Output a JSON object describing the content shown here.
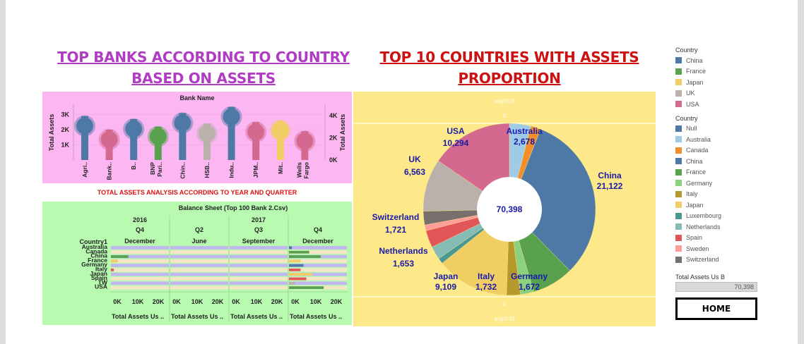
{
  "titles": {
    "left_line1": "TOP BANKS ACCORDING TO COUNTRY",
    "left_line2": "BASED ON ASSETS",
    "right_line1": "TOP 10 COUNTRIES WITH ASSETS",
    "right_line2": "PROPORTION",
    "middle": "TOTAL ASSETS ANALYSIS ACCORDING TO YEAR AND QUARTER"
  },
  "bank_chart": {
    "header": "Bank Name",
    "left_axis_label": "Total Assets",
    "right_axis_label": "Total Assets",
    "left_ticks": [
      "3K",
      "2K",
      "1K"
    ],
    "right_ticks": [
      "4K",
      "2K",
      "0K"
    ],
    "banks": [
      {
        "label": "Agri..",
        "value": 2900,
        "color": "#4e79a7"
      },
      {
        "label": "Bank..",
        "value": 2000,
        "color": "#d4698f"
      },
      {
        "label": "B..",
        "value": 2700,
        "color": "#4e79a7"
      },
      {
        "label": "BNP Pari..",
        "value": 2200,
        "color": "#59a14f"
      },
      {
        "label": "Chin..",
        "value": 3100,
        "color": "#4e79a7"
      },
      {
        "label": "HSB..",
        "value": 2400,
        "color": "#bab0ac"
      },
      {
        "label": "Indu..",
        "value": 3500,
        "color": "#4e79a7"
      },
      {
        "label": "JPM..",
        "value": 2500,
        "color": "#d4698f"
      },
      {
        "label": "Mit..",
        "value": 2600,
        "color": "#f1ce63"
      },
      {
        "label": "Wells Fargo",
        "value": 1900,
        "color": "#d4698f"
      }
    ]
  },
  "balance_table": {
    "title": "Balance Sheet (Top 100 Bank 2.Csv)",
    "row_header": "Country1",
    "columns": [
      {
        "year": "2016",
        "quarter": "Q4",
        "month": "December"
      },
      {
        "year": "2017",
        "quarter": "Q2",
        "month": "June"
      },
      {
        "year": "",
        "quarter": "Q3",
        "month": "September"
      },
      {
        "year": "",
        "quarter": "Q4",
        "month": "December"
      }
    ],
    "rows": [
      "Australia",
      "Canada",
      "China",
      "France",
      "Germany",
      "Italy",
      "Japan",
      "Spain",
      "TW",
      "USA"
    ],
    "axis_ticks": [
      "0K",
      "10K",
      "20K"
    ],
    "axis_title": "Total Assets Us .."
  },
  "pie_chart": {
    "center_total": "70,398",
    "top_placeholder": "avg(0.0)",
    "top_zero": "0",
    "bottom_zero": "0",
    "bottom_placeholder": "avg(0.0)",
    "slices": [
      {
        "name": "Australia",
        "value": 2678,
        "label": "2,678",
        "color": "#a0cbe8"
      },
      {
        "name": "Canada",
        "value": 1240,
        "label": "",
        "color": "#f28e2b"
      },
      {
        "name": "China",
        "value": 21122,
        "label": "21,122",
        "color": "#4e79a7"
      },
      {
        "name": "France",
        "value": 5200,
        "label": "",
        "color": "#59a14f"
      },
      {
        "name": "Germany",
        "value": 1672,
        "label": "1,672",
        "color": "#8cd17d"
      },
      {
        "name": "Italy",
        "value": 1732,
        "label": "1,732",
        "color": "#b6992d"
      },
      {
        "name": "Japan",
        "value": 9109,
        "label": "9,109",
        "color": "#f1ce63"
      },
      {
        "name": "Luxembourg",
        "value": 700,
        "label": "",
        "color": "#499894"
      },
      {
        "name": "Netherlands",
        "value": 1653,
        "label": "1,653",
        "color": "#86bcb6"
      },
      {
        "name": "Spain",
        "value": 2150,
        "label": "",
        "color": "#e15759"
      },
      {
        "name": "Sweden",
        "value": 720,
        "label": "",
        "color": "#ff9d9a"
      },
      {
        "name": "Switzerland",
        "value": 1721,
        "label": "1,721",
        "color": "#79706e"
      },
      {
        "name": "UK",
        "value": 6563,
        "label": "6,563",
        "color": "#bab0ac"
      },
      {
        "name": "USA",
        "value": 10294,
        "label": "10,294",
        "color": "#d4698f"
      }
    ]
  },
  "legend1": {
    "title": "Country",
    "items": [
      {
        "name": "China",
        "color": "#4e79a7"
      },
      {
        "name": "France",
        "color": "#59a14f"
      },
      {
        "name": "Japan",
        "color": "#f1ce63"
      },
      {
        "name": "UK",
        "color": "#bab0ac"
      },
      {
        "name": "USA",
        "color": "#d4698f"
      }
    ]
  },
  "legend2": {
    "title": "Country",
    "items": [
      {
        "name": "Null",
        "color": "#4e79a7"
      },
      {
        "name": "Australia",
        "color": "#a0cbe8"
      },
      {
        "name": "Canada",
        "color": "#f28e2b"
      },
      {
        "name": "China",
        "color": "#4e79a7"
      },
      {
        "name": "France",
        "color": "#59a14f"
      },
      {
        "name": "Germany",
        "color": "#8cd17d"
      },
      {
        "name": "Italy",
        "color": "#b6992d"
      },
      {
        "name": "Japan",
        "color": "#f1ce63"
      },
      {
        "name": "Luxembourg",
        "color": "#499894"
      },
      {
        "name": "Netherlands",
        "color": "#86bcb6"
      },
      {
        "name": "Spain",
        "color": "#e15759"
      },
      {
        "name": "Sweden",
        "color": "#ff9d9a"
      },
      {
        "name": "Switzerland",
        "color": "#79706e"
      }
    ]
  },
  "total_filter": {
    "label": "Total Assets Us B",
    "value": "70,398"
  },
  "home_button": {
    "label": "HOME"
  }
}
